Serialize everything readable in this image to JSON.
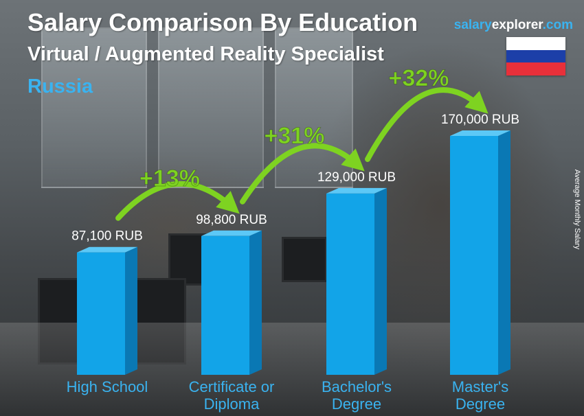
{
  "header": {
    "title": "Salary Comparison By Education",
    "subtitle": "Virtual / Augmented Reality Specialist",
    "country": "Russia"
  },
  "brand": {
    "part1": "salary",
    "part2": "explorer",
    "part3": ".com"
  },
  "flag": {
    "country": "Russia",
    "colors": [
      "#ffffff",
      "#1c3fa8",
      "#e8303a"
    ]
  },
  "colors": {
    "bar_front": "#12a4e8",
    "bar_side": "#0a78b4",
    "bar_top": "#5cc8f6",
    "label_blue": "#3ab3f0",
    "arrow_green": "#7ed321"
  },
  "chart_data": {
    "type": "bar",
    "categories": [
      "High School",
      "Certificate or Diploma",
      "Bachelor's Degree",
      "Master's Degree"
    ],
    "category_lines": [
      [
        "High School"
      ],
      [
        "Certificate or",
        "Diploma"
      ],
      [
        "Bachelor's",
        "Degree"
      ],
      [
        "Master's",
        "Degree"
      ]
    ],
    "values": [
      87100,
      98800,
      129000,
      170000
    ],
    "value_labels": [
      "87,100 RUB",
      "98,800 RUB",
      "129,000 RUB",
      "170,000 RUB"
    ],
    "unit": "RUB",
    "ylabel": "Average Monthly Salary",
    "ylim": [
      0,
      170000
    ],
    "grid": false,
    "increases": [
      "+13%",
      "+31%",
      "+32%"
    ]
  }
}
